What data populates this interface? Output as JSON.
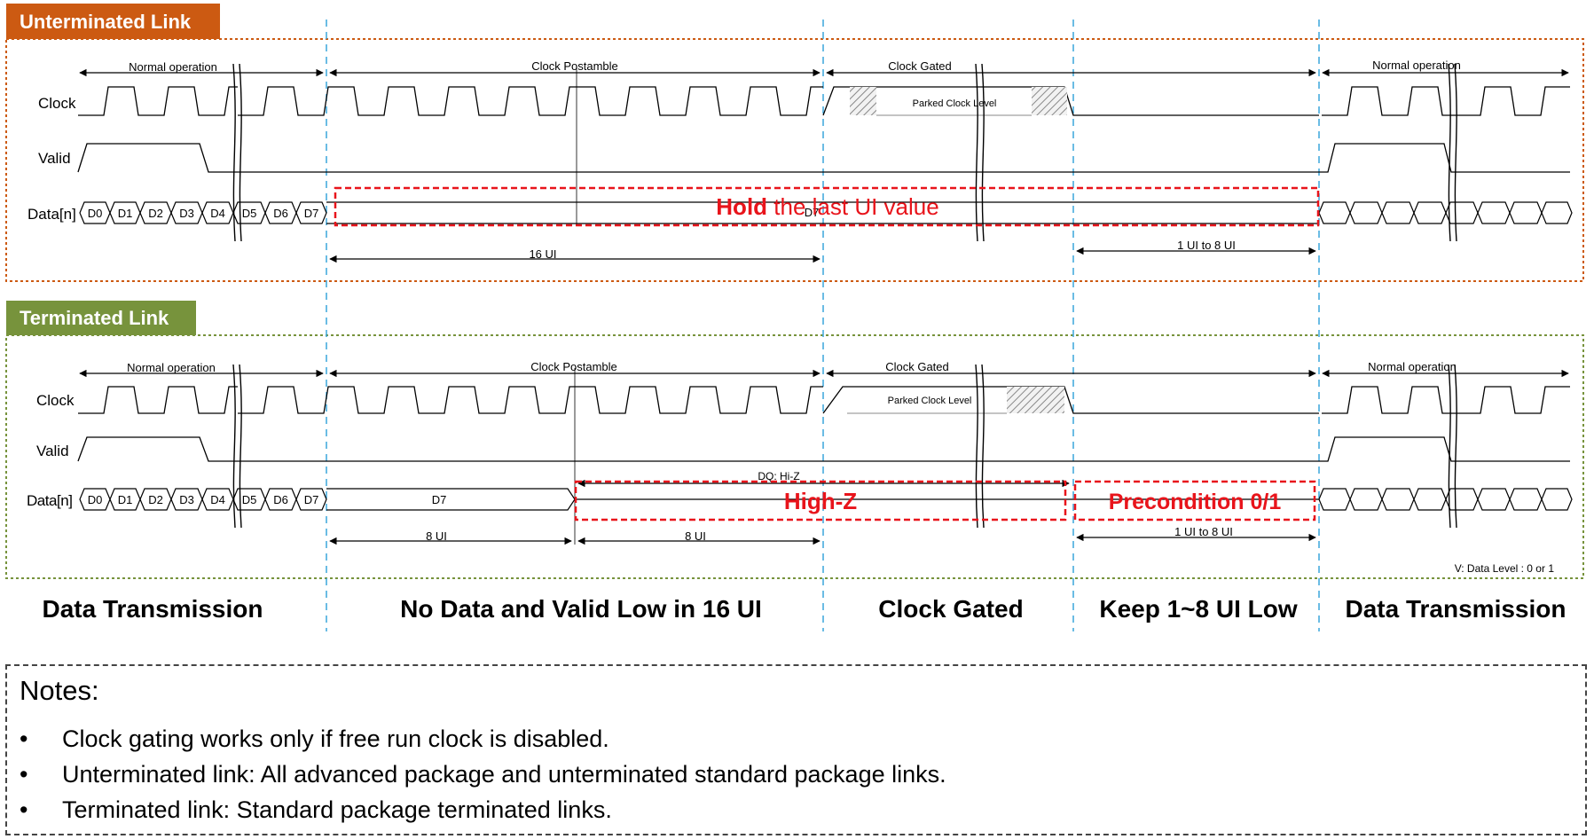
{
  "sections": {
    "unterminated": {
      "title": "Unterminated Link",
      "color": "#cc5a12"
    },
    "terminated": {
      "title": "Terminated Link",
      "color": "#77933c"
    }
  },
  "signals": {
    "clock": "Clock",
    "valid": "Valid",
    "data": "Data[n]",
    "data_cut": "Data[n]"
  },
  "data_labels": [
    "D0",
    "D1",
    "D2",
    "D3",
    "D4",
    "D5",
    "D6",
    "D7"
  ],
  "intervals": {
    "normal_operation": "Normal operation",
    "clock_postamble": "Clock Postamble",
    "clock_gated": "Clock Gated",
    "parked_clock_level": "Parked Clock Level",
    "ui_16": "16 UI",
    "ui_8": "8 UI",
    "ui_1_to_8": "1 UI to 8 UI",
    "dq_hiz": "DQ: Hi-Z",
    "d7": "D7",
    "data_level": "V: Data Level : 0 or 1"
  },
  "callouts": {
    "hold_bold": "Hold",
    "hold_rest": " the last UI value",
    "high_z": "High-Z",
    "precondition": "Precondition 0/1"
  },
  "phases": [
    "Data Transmission",
    "No Data and Valid Low in 16 UI",
    "Clock Gated",
    "Keep 1~8 UI Low",
    "Data Transmission"
  ],
  "notes": {
    "title": "Notes:",
    "bullet": "•",
    "items": [
      "Clock gating works only if free run clock is disabled.",
      "Unterminated link: All advanced package and unterminated standard package links.",
      "Terminated link: Standard package terminated links."
    ]
  },
  "colors": {
    "red": "#e8141b",
    "guide": "#3aa6dc"
  }
}
